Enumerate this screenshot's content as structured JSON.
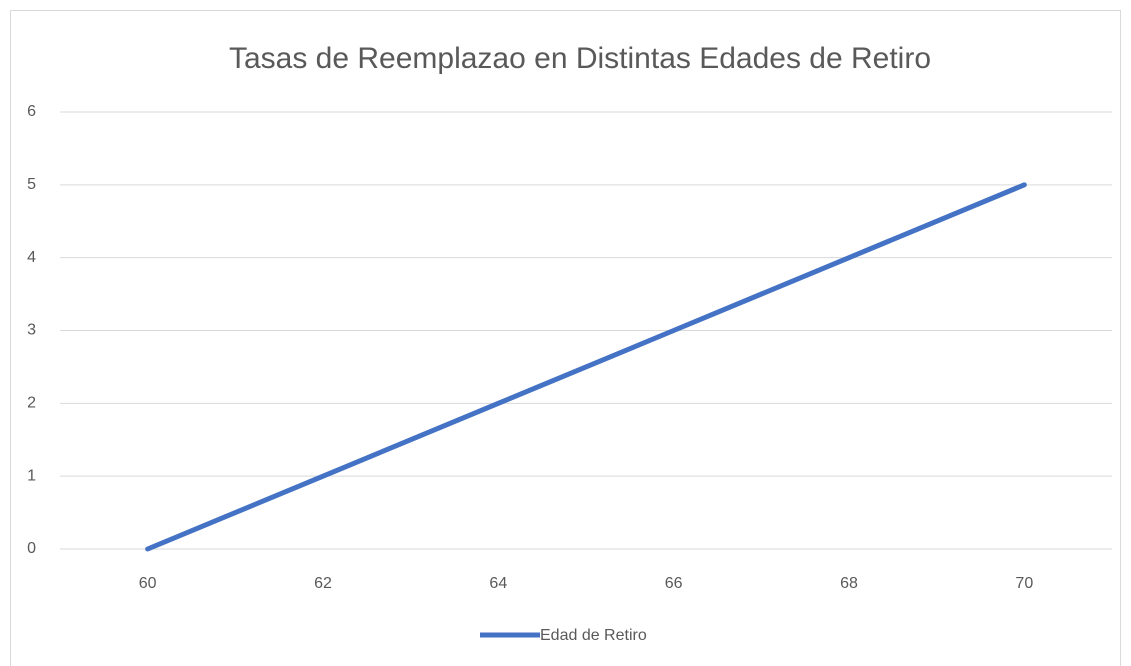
{
  "chart_data": {
    "type": "line",
    "title": "Tasas de Reemplazao en Distintas Edades de Retiro",
    "categories": [
      60,
      62,
      64,
      66,
      68,
      70
    ],
    "series": [
      {
        "name": "Edad de Retiro",
        "color": "#4472c4",
        "values": [
          0,
          1,
          2,
          3,
          4,
          5
        ]
      }
    ],
    "ylim": [
      0,
      6
    ],
    "yticks": [
      0,
      1,
      2,
      3,
      4,
      5,
      6
    ],
    "grid": true,
    "legend": "bottom"
  }
}
